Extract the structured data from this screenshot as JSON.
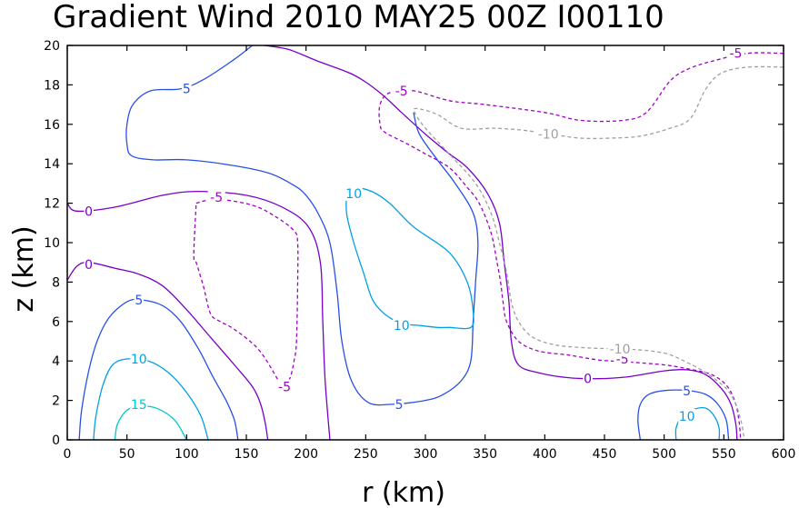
{
  "chart_data": {
    "type": "contour",
    "title": "Gradient Wind 2010 MAY25 00Z  I00110",
    "xlabel": "r (km)",
    "ylabel": "z (km)",
    "xlim": [
      0,
      600
    ],
    "ylim": [
      0,
      20
    ],
    "xticks": [
      0,
      50,
      100,
      150,
      200,
      250,
      300,
      350,
      400,
      450,
      500,
      550,
      600
    ],
    "yticks": [
      0,
      2,
      4,
      6,
      8,
      10,
      12,
      14,
      16,
      18,
      20
    ],
    "colors": {
      "-10": "#a0a0a0",
      "-5": "#a000c8",
      "0": "#7800c8",
      "5": "#2850e6",
      "10": "#00a0e6",
      "15": "#00c8c8"
    },
    "contours": [
      {
        "level": 0,
        "label": "0",
        "dashed": false,
        "points": [
          [
            0,
            12
          ],
          [
            8,
            11.6
          ],
          [
            40,
            11.8
          ],
          [
            80,
            12.4
          ],
          [
            110,
            12.6
          ],
          [
            150,
            12.4
          ],
          [
            180,
            11.8
          ],
          [
            202,
            10.8
          ],
          [
            212,
            9
          ],
          [
            214,
            6
          ],
          [
            216,
            3
          ],
          [
            220,
            0
          ]
        ]
      },
      {
        "level": 0,
        "label": "0",
        "dashed": false,
        "points": [
          [
            0,
            8.1
          ],
          [
            8,
            8.8
          ],
          [
            18,
            9
          ],
          [
            40,
            8.7
          ],
          [
            60,
            8.4
          ],
          [
            80,
            7.8
          ],
          [
            100,
            6.6
          ],
          [
            120,
            5.2
          ],
          [
            140,
            3.8
          ],
          [
            155,
            2.7
          ],
          [
            162,
            1.8
          ],
          [
            166,
            0.8
          ],
          [
            168,
            0
          ]
        ]
      },
      {
        "level": 0,
        "label": "0",
        "dashed": false,
        "points": [
          [
            165,
            20
          ],
          [
            185,
            19.8
          ],
          [
            210,
            19.2
          ],
          [
            240,
            18.5
          ],
          [
            262,
            17.6
          ],
          [
            280,
            16.6
          ],
          [
            300,
            15.5
          ],
          [
            318,
            14.6
          ],
          [
            335,
            13.8
          ],
          [
            352,
            12.5
          ],
          [
            362,
            11
          ],
          [
            366,
            9
          ],
          [
            370,
            7
          ],
          [
            372,
            5
          ],
          [
            378,
            3.8
          ],
          [
            395,
            3.4
          ],
          [
            420,
            3.15
          ],
          [
            445,
            3.1
          ],
          [
            470,
            3.2
          ],
          [
            500,
            3.5
          ],
          [
            520,
            3.55
          ],
          [
            535,
            3.3
          ],
          [
            548,
            2.6
          ],
          [
            556,
            1.8
          ],
          [
            560,
            0.8
          ],
          [
            561,
            0
          ]
        ]
      },
      {
        "level": -5,
        "label": "-5",
        "dashed": true,
        "points": [
          [
            108,
            12
          ],
          [
            125,
            12.2
          ],
          [
            155,
            11.9
          ],
          [
            175,
            11.3
          ],
          [
            190,
            10.6
          ],
          [
            193,
            10
          ],
          [
            193,
            8
          ],
          [
            192,
            5
          ],
          [
            190,
            4
          ],
          [
            187,
            3.2
          ],
          [
            183,
            2.8
          ],
          [
            180,
            2.6
          ],
          [
            175,
            3.2
          ],
          [
            160,
            4.6
          ],
          [
            140,
            5.6
          ],
          [
            128,
            6
          ],
          [
            120,
            6.4
          ],
          [
            114,
            7.8
          ],
          [
            108,
            9
          ],
          [
            106,
            9.4
          ],
          [
            108,
            12
          ]
        ]
      },
      {
        "level": -5,
        "label": "-5",
        "dashed": true,
        "points": [
          [
            600,
            19.6
          ],
          [
            570,
            19.6
          ],
          [
            540,
            19.2
          ],
          [
            520,
            18.8
          ],
          [
            505,
            18.2
          ],
          [
            485,
            16.6
          ],
          [
            465,
            16.2
          ],
          [
            430,
            16.2
          ],
          [
            400,
            16.6
          ],
          [
            350,
            17
          ],
          [
            320,
            17.2
          ],
          [
            290,
            17.7
          ],
          [
            270,
            17.6
          ],
          [
            262,
            17
          ],
          [
            262,
            16
          ],
          [
            266,
            15.6
          ],
          [
            285,
            15
          ],
          [
            300,
            14.5
          ],
          [
            320,
            13.8
          ],
          [
            335,
            12.8
          ],
          [
            345,
            12
          ],
          [
            355,
            10.5
          ],
          [
            360,
            9
          ],
          [
            363,
            8
          ],
          [
            365,
            7
          ],
          [
            368,
            6
          ],
          [
            378,
            5
          ],
          [
            395,
            4.5
          ],
          [
            420,
            4.3
          ],
          [
            445,
            4.05
          ],
          [
            470,
            3.95
          ],
          [
            500,
            3.8
          ],
          [
            520,
            3.6
          ],
          [
            540,
            3.3
          ],
          [
            553,
            2.7
          ],
          [
            560,
            1.8
          ],
          [
            563,
            0.8
          ],
          [
            564,
            0
          ]
        ]
      },
      {
        "level": -10,
        "label": "-10",
        "dashed": true,
        "points": [
          [
            600,
            18.9
          ],
          [
            570,
            18.9
          ],
          [
            548,
            18.6
          ],
          [
            535,
            17.8
          ],
          [
            522,
            16.3
          ],
          [
            505,
            15.8
          ],
          [
            480,
            15.4
          ],
          [
            455,
            15.3
          ],
          [
            430,
            15.3
          ],
          [
            405,
            15.5
          ],
          [
            382,
            15.7
          ],
          [
            358,
            15.8
          ],
          [
            330,
            15.8
          ],
          [
            310,
            16.5
          ],
          [
            293,
            16.8
          ],
          [
            291,
            16.6
          ],
          [
            300,
            15.8
          ],
          [
            320,
            14.5
          ],
          [
            342,
            13
          ],
          [
            355,
            11.5
          ],
          [
            362,
            10
          ],
          [
            368,
            8.5
          ],
          [
            372,
            7
          ],
          [
            378,
            6
          ],
          [
            390,
            5.2
          ],
          [
            410,
            4.8
          ],
          [
            440,
            4.65
          ],
          [
            470,
            4.6
          ],
          [
            500,
            4.4
          ],
          [
            520,
            3.9
          ],
          [
            535,
            3.4
          ],
          [
            552,
            2.6
          ],
          [
            560,
            1.8
          ],
          [
            565,
            0.8
          ],
          [
            567,
            0
          ]
        ]
      },
      {
        "level": 5,
        "label": "5",
        "dashed": false,
        "points": [
          [
            155,
            20
          ],
          [
            140,
            19.3
          ],
          [
            115,
            18.3
          ],
          [
            95,
            17.8
          ],
          [
            70,
            17.7
          ],
          [
            55,
            17
          ],
          [
            50,
            16
          ],
          [
            50,
            15
          ],
          [
            54,
            14.4
          ],
          [
            72,
            14.2
          ],
          [
            100,
            14.2
          ],
          [
            140,
            13.9
          ],
          [
            170,
            13.5
          ],
          [
            190,
            12.9
          ],
          [
            200,
            12.4
          ],
          [
            210,
            11.5
          ],
          [
            220,
            10
          ],
          [
            226,
            7.5
          ],
          [
            230,
            5
          ],
          [
            238,
            3
          ],
          [
            252,
            1.9
          ],
          [
            272,
            1.8
          ],
          [
            300,
            2
          ],
          [
            315,
            2.3
          ],
          [
            330,
            3
          ],
          [
            338,
            4
          ],
          [
            340,
            6
          ],
          [
            342,
            8
          ],
          [
            344,
            10
          ],
          [
            340,
            11.5
          ],
          [
            325,
            13
          ],
          [
            310,
            14.2
          ],
          [
            295,
            15.5
          ],
          [
            290,
            16.6
          ]
        ]
      },
      {
        "level": 5,
        "label": "5",
        "dashed": false,
        "points": [
          [
            10,
            0
          ],
          [
            12,
            1.5
          ],
          [
            18,
            3.5
          ],
          [
            25,
            5
          ],
          [
            35,
            6.2
          ],
          [
            50,
            7
          ],
          [
            62,
            7.1
          ],
          [
            80,
            6.8
          ],
          [
            95,
            6
          ],
          [
            110,
            4.6
          ],
          [
            122,
            3.2
          ],
          [
            133,
            2
          ],
          [
            140,
            1
          ],
          [
            143,
            0
          ]
        ]
      },
      {
        "level": 5,
        "label": "5",
        "dashed": false,
        "points": [
          [
            480,
            0
          ],
          [
            478,
            1
          ],
          [
            480,
            1.8
          ],
          [
            487,
            2.3
          ],
          [
            500,
            2.5
          ],
          [
            520,
            2.5
          ],
          [
            535,
            2.3
          ],
          [
            545,
            1.8
          ],
          [
            552,
            1
          ],
          [
            554,
            0
          ]
        ]
      },
      {
        "level": 10,
        "label": "10",
        "dashed": false,
        "points": [
          [
            295,
            5.8
          ],
          [
            280,
            5.9
          ],
          [
            270,
            6.2
          ],
          [
            262,
            6.6
          ],
          [
            255,
            7.2
          ],
          [
            248,
            8.5
          ],
          [
            240,
            10
          ],
          [
            234,
            11.5
          ],
          [
            235,
            12.6
          ],
          [
            240,
            12.8
          ],
          [
            255,
            12.6
          ],
          [
            270,
            12
          ],
          [
            290,
            10.8
          ],
          [
            320,
            9.5
          ],
          [
            335,
            8
          ],
          [
            340,
            6.5
          ],
          [
            338,
            5.7
          ],
          [
            320,
            5.7
          ],
          [
            310,
            5.7
          ],
          [
            295,
            5.8
          ]
        ]
      },
      {
        "level": 10,
        "label": "10",
        "dashed": false,
        "points": [
          [
            22,
            0
          ],
          [
            24,
            1.2
          ],
          [
            30,
            2.8
          ],
          [
            38,
            3.8
          ],
          [
            50,
            4.1
          ],
          [
            68,
            4
          ],
          [
            85,
            3.4
          ],
          [
            100,
            2.4
          ],
          [
            112,
            1.2
          ],
          [
            118,
            0
          ]
        ]
      },
      {
        "level": 10,
        "label": "10",
        "dashed": false,
        "points": [
          [
            510,
            0
          ],
          [
            510,
            0.6
          ],
          [
            515,
            1.2
          ],
          [
            525,
            1.55
          ],
          [
            535,
            1.6
          ],
          [
            542,
            1.2
          ],
          [
            546,
            0.6
          ],
          [
            546,
            0
          ]
        ]
      },
      {
        "level": 15,
        "label": "15",
        "dashed": false,
        "points": [
          [
            40,
            0
          ],
          [
            42,
            0.8
          ],
          [
            50,
            1.5
          ],
          [
            60,
            1.7
          ],
          [
            75,
            1.6
          ],
          [
            90,
            1
          ],
          [
            100,
            0
          ]
        ]
      }
    ],
    "contour_labels": [
      {
        "text": "0",
        "x": 18,
        "y": 11.6,
        "level": 0
      },
      {
        "text": "0",
        "x": 18,
        "y": 8.9,
        "level": 0
      },
      {
        "text": "0",
        "x": 436,
        "y": 3.1,
        "level": 0
      },
      {
        "text": "-5",
        "x": 125,
        "y": 12.3,
        "level": -5
      },
      {
        "text": "-5",
        "x": 182,
        "y": 2.7,
        "level": -5
      },
      {
        "text": "-5",
        "x": 280,
        "y": 17.7,
        "level": -5
      },
      {
        "text": "-5",
        "x": 560,
        "y": 19.6,
        "level": -5
      },
      {
        "text": "-5",
        "x": 465,
        "y": 4.1,
        "level": -5
      },
      {
        "text": "-10",
        "x": 403,
        "y": 15.5,
        "level": -10
      },
      {
        "text": "-10",
        "x": 463,
        "y": 4.6,
        "level": -10
      },
      {
        "text": "5",
        "x": 100,
        "y": 17.8,
        "level": 5
      },
      {
        "text": "5",
        "x": 60,
        "y": 7.1,
        "level": 5
      },
      {
        "text": "5",
        "x": 278,
        "y": 1.8,
        "level": 5
      },
      {
        "text": "5",
        "x": 519,
        "y": 2.5,
        "level": 5
      },
      {
        "text": "10",
        "x": 240,
        "y": 12.5,
        "level": 10
      },
      {
        "text": "10",
        "x": 280,
        "y": 5.8,
        "level": 10
      },
      {
        "text": "10",
        "x": 60,
        "y": 4.1,
        "level": 10
      },
      {
        "text": "10",
        "x": 519,
        "y": 1.2,
        "level": 10
      },
      {
        "text": "15",
        "x": 60,
        "y": 1.8,
        "level": 15
      }
    ]
  }
}
